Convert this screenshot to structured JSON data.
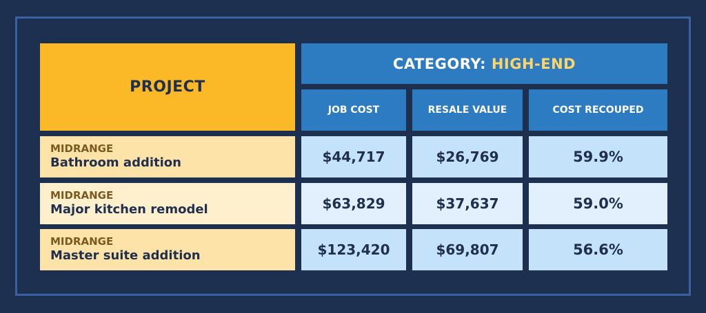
{
  "table": {
    "project_header": "PROJECT",
    "category_label": "CATEGORY:",
    "category_value": "HIGH-END",
    "columns": [
      "JOB COST",
      "RESALE VALUE",
      "COST RECOUPED"
    ],
    "rows": [
      {
        "tier": "MIDRANGE",
        "name": "Bathroom addition",
        "job_cost": "$44,717",
        "resale_value": "$26,769",
        "cost_recouped": "59.9%"
      },
      {
        "tier": "MIDRANGE",
        "name": "Major kitchen remodel",
        "job_cost": "$63,829",
        "resale_value": "$37,637",
        "cost_recouped": "59.0%"
      },
      {
        "tier": "MIDRANGE",
        "name": "Master suite addition",
        "job_cost": "$123,420",
        "resale_value": "$69,807",
        "cost_recouped": "56.6%"
      }
    ]
  },
  "colors": {
    "background": "#1e3050",
    "frame_border": "#3b62a0",
    "project_header": "#fbb928",
    "column_header": "#2d7bc0",
    "highlight_text": "#fbd46a",
    "project_row_a": "#fde3a8",
    "project_row_b": "#fef0cd",
    "value_row_a": "#c5e2fb",
    "value_row_b": "#e2f0fd"
  }
}
